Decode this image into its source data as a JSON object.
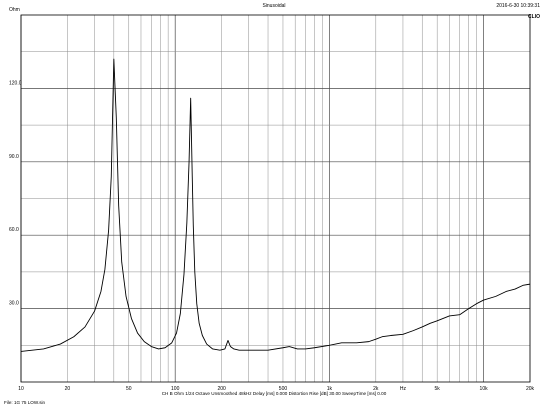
{
  "header": {
    "title": "Sinusoidal",
    "timestamp": "2016-6-30 10:39:31",
    "brand": "CLIO"
  },
  "status_line": "CH B   Ohm   1/24 Octave   Unsmoothed   48kHz   Delay [ms] 0.000   Distortion Rise [dB] 30.00   SweepTime [ms] 0.00",
  "file_line": "File: 1G 75 LOW.sin",
  "chart_data": {
    "type": "line",
    "title": "",
    "xlabel": "",
    "ylabel": "Ohm",
    "x_scale": "log",
    "xlim": [
      10,
      20000
    ],
    "ylim": [
      0,
      150
    ],
    "grid": true,
    "y_ticks": [
      {
        "value": 150,
        "label": "Ohm"
      },
      {
        "value": 120,
        "label": "120.0"
      },
      {
        "value": 90,
        "label": "90.0"
      },
      {
        "value": 60,
        "label": "60.0"
      },
      {
        "value": 30,
        "label": "30.0"
      }
    ],
    "x_tick_labels": [
      {
        "value": 10,
        "label": "10"
      },
      {
        "value": 20,
        "label": "20"
      },
      {
        "value": 50,
        "label": "50"
      },
      {
        "value": 100,
        "label": "100"
      },
      {
        "value": 200,
        "label": "200"
      },
      {
        "value": 500,
        "label": "500"
      },
      {
        "value": 1000,
        "label": "1k"
      },
      {
        "value": 2000,
        "label": "2k"
      },
      {
        "value": 3000,
        "label": "Hz"
      },
      {
        "value": 5000,
        "label": "5k"
      },
      {
        "value": 10000,
        "label": "10k"
      },
      {
        "value": 20000,
        "label": "20k"
      }
    ],
    "series": [
      {
        "color": "#000000",
        "x": [
          10,
          14,
          18,
          22,
          26,
          30,
          33,
          35,
          37,
          38.5,
          40,
          41.5,
          43,
          45,
          48,
          52,
          57,
          63,
          70,
          78,
          86,
          95,
          102,
          108,
          114,
          119,
          123,
          126,
          129,
          131,
          134,
          138,
          143,
          150,
          160,
          175,
          195,
          210,
          220,
          228,
          240,
          260,
          300,
          400,
          500,
          550,
          620,
          700,
          800,
          1000,
          1200,
          1500,
          1800,
          2000,
          2200,
          2500,
          3000,
          3500,
          4000,
          4500,
          5000,
          6000,
          7000,
          8000,
          9000,
          10000,
          12000,
          14000,
          16000,
          18000,
          20000
        ],
        "y": [
          12.5,
          13.5,
          15.5,
          18.5,
          22.5,
          29,
          37,
          46,
          62,
          84,
          132,
          108,
          72,
          49,
          35,
          26,
          20,
          16.5,
          14.5,
          13.5,
          14,
          16,
          20,
          28,
          44,
          65,
          90,
          116,
          84,
          64,
          45,
          32,
          24,
          19,
          15.5,
          13.5,
          13,
          13.5,
          17,
          14.5,
          13.5,
          13,
          13,
          13,
          14,
          14.5,
          13.5,
          13.5,
          14,
          15,
          16,
          16,
          16.5,
          17.5,
          18.5,
          19,
          19.5,
          21,
          22.5,
          24,
          25,
          27,
          27.5,
          30,
          32,
          33.5,
          35,
          37,
          38,
          39.5,
          40
        ]
      }
    ]
  }
}
